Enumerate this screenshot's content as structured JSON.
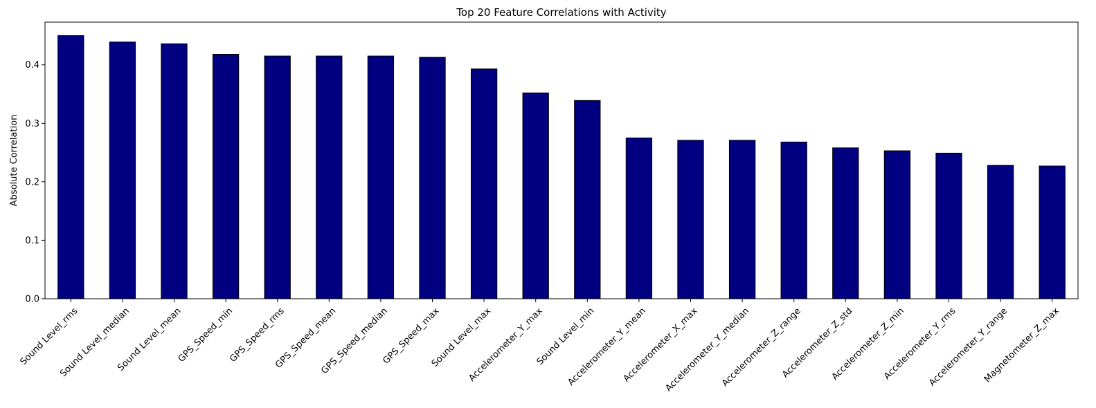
{
  "chart_data": {
    "type": "bar",
    "title": "Top 20 Feature Correlations with Activity",
    "xlabel": "",
    "ylabel": "Absolute Correlation",
    "categories": [
      "Sound Level_rms",
      "Sound Level_median",
      "Sound Level_mean",
      "GPS_Speed_min",
      "GPS_Speed_rms",
      "GPS_Speed_mean",
      "GPS_Speed_median",
      "GPS_Speed_max",
      "Sound Level_max",
      "Accelerometer_Y_max",
      "Sound Level_min",
      "Accelerometer_Y_mean",
      "Accelerometer_X_max",
      "Accelerometer_Y_median",
      "Accelerometer_Z_range",
      "Accelerometer_Z_std",
      "Accelerometer_Z_min",
      "Accelerometer_Y_rms",
      "Accelerometer_Y_range",
      "Magnetometer_Z_max"
    ],
    "values": [
      0.45,
      0.439,
      0.436,
      0.418,
      0.415,
      0.415,
      0.415,
      0.413,
      0.393,
      0.352,
      0.339,
      0.275,
      0.271,
      0.271,
      0.268,
      0.258,
      0.253,
      0.249,
      0.228,
      0.227
    ],
    "ylim": [
      0,
      0.473
    ],
    "yticks": [
      "0.0",
      "0.1",
      "0.2",
      "0.3",
      "0.4"
    ],
    "grid": false,
    "bar_color": "#000080",
    "edge_color": "#000000"
  }
}
